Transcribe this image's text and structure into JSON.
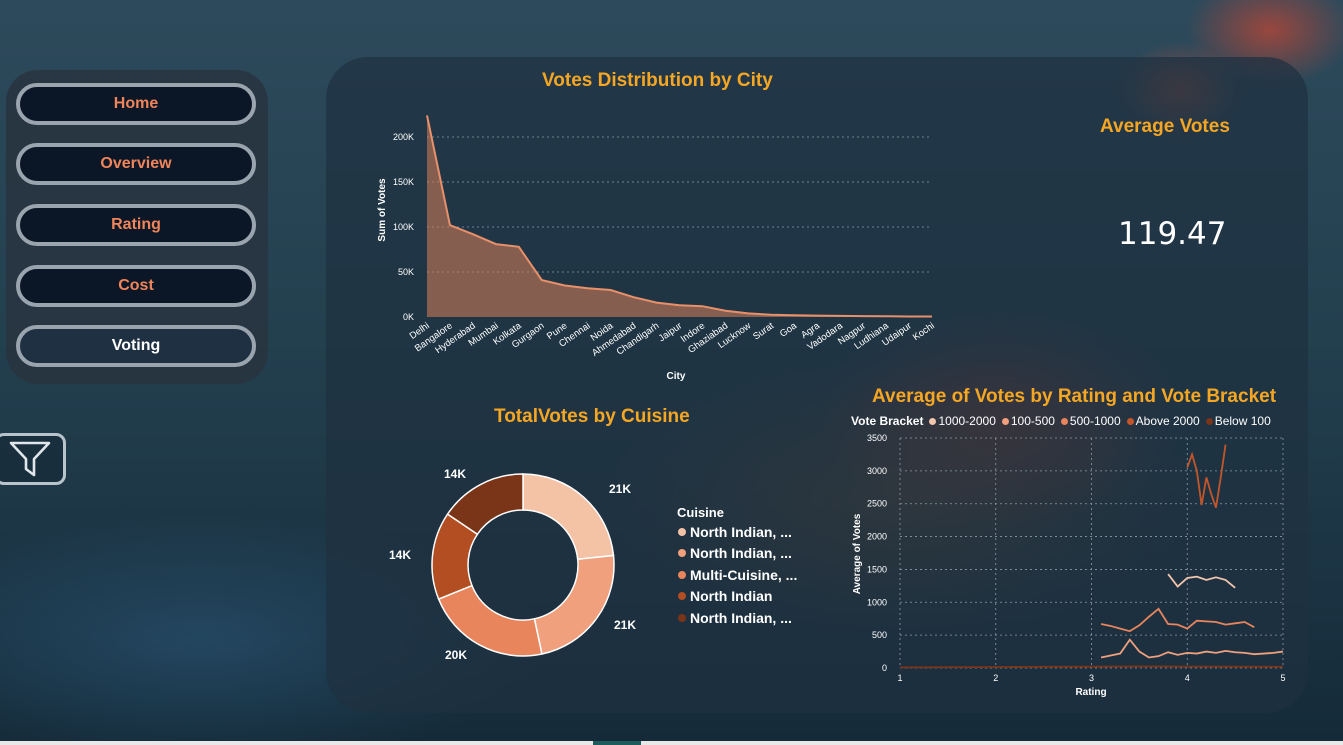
{
  "nav": {
    "items": [
      {
        "label": "Home",
        "active": false
      },
      {
        "label": "Overview",
        "active": false
      },
      {
        "label": "Rating",
        "active": false
      },
      {
        "label": "Cost",
        "active": false
      },
      {
        "label": "Voting",
        "active": true
      }
    ],
    "filter_icon": "funnel-icon"
  },
  "kpi": {
    "title": "Average Votes",
    "value": "119.47"
  },
  "colors": {
    "accent_title": "#f5a623",
    "nav_text": "#f0845a",
    "area": "#d9805a",
    "donut": [
      "#f4c3a6",
      "#f0a07c",
      "#e8855c",
      "#b34d22",
      "#7a3418"
    ]
  },
  "chart_data": [
    {
      "type": "area",
      "title": "Votes Distribution by City",
      "xlabel": "City",
      "ylabel": "Sum of Votes",
      "ylim": [
        0,
        230000
      ],
      "yticks": [
        0,
        50000,
        100000,
        150000,
        200000
      ],
      "ytick_labels": [
        "0K",
        "50K",
        "100K",
        "150K",
        "200K"
      ],
      "grid": true,
      "categories": [
        "Delhi",
        "Bangalore",
        "Hyderabad",
        "Mumbai",
        "Kolkata",
        "Gurgaon",
        "Pune",
        "Chennai",
        "Noida",
        "Ahmedabad",
        "Chandigarh",
        "Jaipur",
        "Indore",
        "Ghaziabad",
        "Lucknow",
        "Surat",
        "Goa",
        "Agra",
        "Vadodara",
        "Nagpur",
        "Ludhiana",
        "Udaipur",
        "Kochi"
      ],
      "values": [
        224000,
        102000,
        92000,
        81000,
        78000,
        41000,
        35000,
        32000,
        30000,
        22000,
        16000,
        13000,
        12000,
        7000,
        4000,
        2500,
        2000,
        1500,
        1200,
        1000,
        800,
        600,
        500
      ]
    },
    {
      "type": "pie",
      "title": "TotalVotes by Cuisine",
      "legend_title": "Cuisine",
      "legend_position": "right",
      "labels": [
        "North Indian, ...",
        "North Indian, ...",
        "Multi-Cuisine, ...",
        "North Indian",
        "North Indian, ..."
      ],
      "values": [
        21000,
        21000,
        20000,
        14000,
        14000
      ],
      "data_labels": [
        "21K",
        "21K",
        "20K",
        "14K",
        "14K"
      ]
    },
    {
      "type": "line",
      "title": "Average of Votes by Rating and Vote Bracket",
      "xlabel": "Rating",
      "ylabel": "Average of Votes",
      "xlim": [
        1,
        5
      ],
      "ylim": [
        0,
        3500
      ],
      "xticks": [
        1,
        2,
        3,
        4,
        5
      ],
      "yticks": [
        0,
        500,
        1000,
        1500,
        2000,
        2500,
        3000,
        3500
      ],
      "grid": true,
      "legend_title": "Vote Bracket",
      "legend_position": "top",
      "series": [
        {
          "name": "1000-2000",
          "color": "#f2c5ad",
          "x": [
            3.8,
            3.9,
            4.0,
            4.1,
            4.2,
            4.3,
            4.4,
            4.5
          ],
          "y": [
            1430,
            1240,
            1370,
            1390,
            1340,
            1380,
            1340,
            1220
          ]
        },
        {
          "name": "100-500",
          "color": "#f0a07c",
          "x": [
            3.1,
            3.2,
            3.3,
            3.4,
            3.5,
            3.6,
            3.7,
            3.8,
            3.9,
            4.0,
            4.1,
            4.2,
            4.3,
            4.4,
            4.5,
            4.6,
            4.7,
            4.8,
            4.9,
            5.0
          ],
          "y": [
            160,
            190,
            220,
            430,
            250,
            160,
            180,
            240,
            200,
            230,
            220,
            250,
            230,
            260,
            240,
            230,
            210,
            220,
            230,
            250
          ]
        },
        {
          "name": "500-1000",
          "color": "#e8855c",
          "x": [
            3.1,
            3.2,
            3.3,
            3.4,
            3.5,
            3.6,
            3.7,
            3.8,
            3.9,
            4.0,
            4.1,
            4.2,
            4.3,
            4.4,
            4.5,
            4.6,
            4.7
          ],
          "y": [
            670,
            640,
            600,
            560,
            650,
            780,
            900,
            670,
            660,
            600,
            720,
            710,
            700,
            660,
            680,
            700,
            620
          ]
        },
        {
          "name": "Above 2000",
          "color": "#c2562a",
          "x": [
            4.0,
            4.05,
            4.1,
            4.15,
            4.2,
            4.25,
            4.3,
            4.35,
            4.4
          ],
          "y": [
            3050,
            3250,
            3000,
            2480,
            2900,
            2650,
            2440,
            2900,
            3400
          ]
        },
        {
          "name": "Below 100",
          "color": "#7a3418",
          "x": [
            1.0,
            1.5,
            2.0,
            2.5,
            3.0,
            3.5,
            4.0,
            4.5,
            5.0
          ],
          "y": [
            10,
            12,
            15,
            18,
            20,
            25,
            22,
            20,
            18
          ]
        }
      ]
    }
  ]
}
